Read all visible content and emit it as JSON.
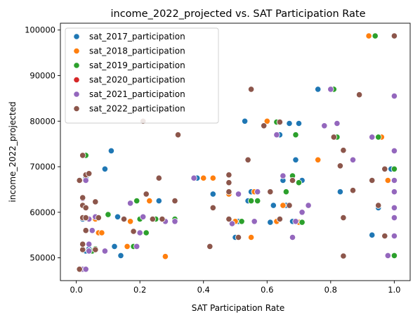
{
  "chart_data": {
    "type": "scatter",
    "title": "income_2022_projected vs. SAT Participation Rate",
    "xlabel": "SAT Participation Rate",
    "ylabel": "income_2022_projected",
    "xlim": [
      -0.05,
      1.05
    ],
    "ylim": [
      45000,
      101500
    ],
    "xticks": [
      0.0,
      0.2,
      0.4,
      0.6,
      0.8,
      1.0
    ],
    "xtick_labels": [
      "0.0",
      "0.2",
      "0.4",
      "0.6",
      "0.8",
      "1.0"
    ],
    "yticks": [
      50000,
      60000,
      70000,
      80000,
      90000,
      100000
    ],
    "ytick_labels": [
      "50000",
      "60000",
      "70000",
      "80000",
      "90000",
      "100000"
    ],
    "grid": false,
    "legend_position": "top-left",
    "series": [
      {
        "name": "sat_2017_participation",
        "color": "#1f77b4",
        "points": [
          [
            0.02,
            47500
          ],
          [
            0.03,
            51500
          ],
          [
            0.04,
            52000
          ],
          [
            0.05,
            51500
          ],
          [
            0.02,
            53000
          ],
          [
            0.12,
            52500
          ],
          [
            0.14,
            50500
          ],
          [
            0.13,
            59000
          ],
          [
            0.02,
            58500
          ],
          [
            0.03,
            61000
          ],
          [
            0.02,
            63000
          ],
          [
            0.03,
            67500
          ],
          [
            0.03,
            72500
          ],
          [
            0.09,
            69500
          ],
          [
            0.11,
            73500
          ],
          [
            0.26,
            62500
          ],
          [
            0.38,
            67500
          ],
          [
            0.43,
            64000
          ],
          [
            0.5,
            54500
          ],
          [
            0.51,
            58000
          ],
          [
            0.53,
            80000
          ],
          [
            0.54,
            62500
          ],
          [
            0.55,
            64500
          ],
          [
            0.61,
            57800
          ],
          [
            0.62,
            61500
          ],
          [
            0.64,
            77000
          ],
          [
            0.65,
            67000
          ],
          [
            0.66,
            61500
          ],
          [
            0.67,
            79500
          ],
          [
            0.68,
            58000
          ],
          [
            0.69,
            71500
          ],
          [
            0.7,
            79500
          ],
          [
            0.71,
            67000
          ],
          [
            0.76,
            87000
          ],
          [
            0.81,
            87000
          ],
          [
            0.83,
            64500
          ],
          [
            0.93,
            55000
          ],
          [
            0.95,
            61000
          ],
          [
            0.97,
            69500
          ],
          [
            0.99,
            69500
          ],
          [
            1.0,
            50500
          ],
          [
            1.0,
            61000
          ]
        ]
      },
      {
        "name": "sat_2018_participation",
        "color": "#ff7f0e",
        "points": [
          [
            0.02,
            47500
          ],
          [
            0.04,
            51500
          ],
          [
            0.05,
            51500
          ],
          [
            0.06,
            58500
          ],
          [
            0.07,
            55500
          ],
          [
            0.08,
            55500
          ],
          [
            0.16,
            52500
          ],
          [
            0.17,
            58000
          ],
          [
            0.23,
            62500
          ],
          [
            0.28,
            50300
          ],
          [
            0.4,
            67500
          ],
          [
            0.43,
            67500
          ],
          [
            0.48,
            64000
          ],
          [
            0.5,
            58000
          ],
          [
            0.52,
            58000
          ],
          [
            0.55,
            54500
          ],
          [
            0.56,
            64500
          ],
          [
            0.6,
            80000
          ],
          [
            0.63,
            58000
          ],
          [
            0.64,
            58500
          ],
          [
            0.65,
            61500
          ],
          [
            0.7,
            57800
          ],
          [
            0.76,
            71500
          ],
          [
            0.92,
            98700
          ],
          [
            0.96,
            76500
          ],
          [
            0.98,
            67000
          ],
          [
            1.0,
            69500
          ]
        ]
      },
      {
        "name": "sat_2019_participation",
        "color": "#2ca02c",
        "points": [
          [
            0.03,
            72500
          ],
          [
            0.05,
            51500
          ],
          [
            0.06,
            52000
          ],
          [
            0.1,
            59500
          ],
          [
            0.19,
            62500
          ],
          [
            0.2,
            58500
          ],
          [
            0.22,
            55500
          ],
          [
            0.18,
            52500
          ],
          [
            0.25,
            58500
          ],
          [
            0.31,
            58500
          ],
          [
            0.52,
            58000
          ],
          [
            0.55,
            62500
          ],
          [
            0.57,
            62500
          ],
          [
            0.63,
            79800
          ],
          [
            0.66,
            64500
          ],
          [
            0.68,
            68000
          ],
          [
            0.69,
            77000
          ],
          [
            0.7,
            66500
          ],
          [
            0.71,
            57800
          ],
          [
            0.82,
            76500
          ],
          [
            0.81,
            87000
          ],
          [
            0.94,
            98700
          ],
          [
            0.95,
            76500
          ],
          [
            1.0,
            50500
          ],
          [
            1.0,
            61000
          ],
          [
            1.0,
            69500
          ]
        ]
      },
      {
        "name": "sat_2020_participation",
        "color": "#d62728",
        "points": []
      },
      {
        "name": "sat_2021_participation",
        "color": "#9467bd",
        "points": [
          [
            0.02,
            47500
          ],
          [
            0.03,
            47500
          ],
          [
            0.04,
            51500
          ],
          [
            0.04,
            53000
          ],
          [
            0.05,
            56000
          ],
          [
            0.04,
            58500
          ],
          [
            0.03,
            61000
          ],
          [
            0.02,
            63000
          ],
          [
            0.03,
            67000
          ],
          [
            0.06,
            59000
          ],
          [
            0.09,
            51500
          ],
          [
            0.17,
            62000
          ],
          [
            0.19,
            52500
          ],
          [
            0.2,
            55500
          ],
          [
            0.21,
            59000
          ],
          [
            0.28,
            58000
          ],
          [
            0.31,
            58000
          ],
          [
            0.37,
            67500
          ],
          [
            0.49,
            57500
          ],
          [
            0.51,
            64000
          ],
          [
            0.56,
            58000
          ],
          [
            0.57,
            64500
          ],
          [
            0.63,
            77000
          ],
          [
            0.65,
            68000
          ],
          [
            0.68,
            54500
          ],
          [
            0.69,
            58000
          ],
          [
            0.71,
            60000
          ],
          [
            0.73,
            61500
          ],
          [
            0.78,
            79000
          ],
          [
            0.8,
            87000
          ],
          [
            0.82,
            79500
          ],
          [
            0.87,
            71500
          ],
          [
            0.93,
            76500
          ],
          [
            0.98,
            50500
          ],
          [
            1.0,
            54800
          ],
          [
            1.0,
            58800
          ],
          [
            1.0,
            61000
          ],
          [
            1.0,
            64500
          ],
          [
            1.0,
            67000
          ],
          [
            1.0,
            73500
          ],
          [
            1.0,
            85500
          ]
        ]
      },
      {
        "name": "sat_2022_participation",
        "color": "#8c564b",
        "points": [
          [
            0.01,
            47500
          ],
          [
            0.01,
            67000
          ],
          [
            0.02,
            51800
          ],
          [
            0.02,
            53000
          ],
          [
            0.02,
            58800
          ],
          [
            0.02,
            61500
          ],
          [
            0.02,
            63200
          ],
          [
            0.03,
            56000
          ],
          [
            0.03,
            58800
          ],
          [
            0.03,
            61000
          ],
          [
            0.03,
            68200
          ],
          [
            0.02,
            72500
          ],
          [
            0.04,
            68500
          ],
          [
            0.06,
            51800
          ],
          [
            0.06,
            62300
          ],
          [
            0.07,
            58800
          ],
          [
            0.15,
            58500
          ],
          [
            0.18,
            55800
          ],
          [
            0.21,
            80000
          ],
          [
            0.22,
            64000
          ],
          [
            0.24,
            58500
          ],
          [
            0.26,
            67500
          ],
          [
            0.27,
            58500
          ],
          [
            0.31,
            62500
          ],
          [
            0.32,
            77000
          ],
          [
            0.42,
            52500
          ],
          [
            0.43,
            61000
          ],
          [
            0.48,
            58500
          ],
          [
            0.48,
            64500
          ],
          [
            0.48,
            66500
          ],
          [
            0.48,
            68200
          ],
          [
            0.51,
            54500
          ],
          [
            0.54,
            71500
          ],
          [
            0.55,
            87000
          ],
          [
            0.59,
            79000
          ],
          [
            0.61,
            64500
          ],
          [
            0.64,
            58500
          ],
          [
            0.64,
            79800
          ],
          [
            0.67,
            61500
          ],
          [
            0.68,
            67000
          ],
          [
            0.81,
            76500
          ],
          [
            0.83,
            70200
          ],
          [
            0.84,
            73600
          ],
          [
            0.84,
            58800
          ],
          [
            0.84,
            50400
          ],
          [
            0.87,
            64800
          ],
          [
            0.89,
            85800
          ],
          [
            0.93,
            67000
          ],
          [
            0.95,
            61500
          ],
          [
            0.97,
            54800
          ],
          [
            0.97,
            69500
          ],
          [
            1.0,
            98700
          ]
        ]
      }
    ]
  }
}
